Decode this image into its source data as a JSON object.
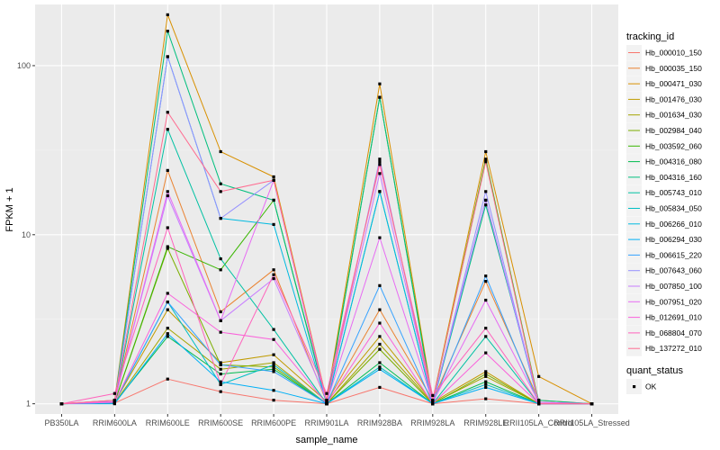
{
  "chart_data": {
    "type": "line",
    "title": "",
    "xlabel": "sample_name",
    "ylabel": "FPKM + 1",
    "y_scale": "log10",
    "ylim": [
      0.87,
      230
    ],
    "grid": true,
    "legend_position": "right",
    "categories": [
      "PB350LA",
      "RRIM600LA",
      "RRIM600LE",
      "RRIM600SE",
      "RRIM600PE",
      "RRIM901LA",
      "RRIM928BA",
      "RRIM928LA",
      "RRIM928LE",
      "RRII105LA_Control",
      "RRII105LA_Stressed"
    ],
    "y_ticks": [
      1,
      10,
      100
    ],
    "y_tick_labels": [
      "1",
      "10",
      "100"
    ],
    "color_legend": {
      "title": "tracking_id",
      "entries": [
        {
          "label": "Hb_000010_150",
          "color": "#F8766D"
        },
        {
          "label": "Hb_000035_150",
          "color": "#EA8331"
        },
        {
          "label": "Hb_000471_030",
          "color": "#D89000"
        },
        {
          "label": "Hb_001476_030",
          "color": "#C09B00"
        },
        {
          "label": "Hb_001634_030",
          "color": "#A3A500"
        },
        {
          "label": "Hb_002984_040",
          "color": "#7CAE00"
        },
        {
          "label": "Hb_003592_060",
          "color": "#39B600"
        },
        {
          "label": "Hb_004316_080",
          "color": "#00BB4E"
        },
        {
          "label": "Hb_004316_160",
          "color": "#00BF7D"
        },
        {
          "label": "Hb_005743_010",
          "color": "#00C1A3"
        },
        {
          "label": "Hb_005834_050",
          "color": "#00BFC4"
        },
        {
          "label": "Hb_006266_010",
          "color": "#00BAE0"
        },
        {
          "label": "Hb_006294_030",
          "color": "#00B0F6"
        },
        {
          "label": "Hb_006615_220",
          "color": "#35A2FF"
        },
        {
          "label": "Hb_007643_060",
          "color": "#9590FF"
        },
        {
          "label": "Hb_007850_100",
          "color": "#C77CFF"
        },
        {
          "label": "Hb_007951_020",
          "color": "#E76BF3"
        },
        {
          "label": "Hb_012691_010",
          "color": "#FA62DB"
        },
        {
          "label": "Hb_068804_070",
          "color": "#FF62BC"
        },
        {
          "label": "Hb_137272_010",
          "color": "#FF6C91"
        }
      ]
    },
    "shape_legend": {
      "title": "quant_status",
      "entries": [
        {
          "label": "OK",
          "shape": "square"
        }
      ]
    },
    "series": [
      {
        "name": "Hb_000010_150",
        "color": "#F8766D",
        "values": [
          1.0,
          1.01,
          1.4,
          1.18,
          1.05,
          1.0,
          1.25,
          1.0,
          1.07,
          1.0,
          1.0
        ]
      },
      {
        "name": "Hb_000035_150",
        "color": "#EA8331",
        "values": [
          1.0,
          1.03,
          24.0,
          3.5,
          6.2,
          1.02,
          3.6,
          1.05,
          5.3,
          1.05,
          1.0
        ]
      },
      {
        "name": "Hb_000471_030",
        "color": "#D89000",
        "values": [
          1.0,
          1.05,
          200.0,
          31.0,
          22.0,
          1.05,
          78.0,
          1.05,
          31.0,
          1.45,
          1.0
        ]
      },
      {
        "name": "Hb_001476_030",
        "color": "#C09B00",
        "values": [
          1.0,
          1.02,
          3.6,
          1.75,
          1.95,
          1.03,
          2.5,
          1.02,
          1.55,
          1.0,
          1.0
        ]
      },
      {
        "name": "Hb_001634_030",
        "color": "#A3A500",
        "values": [
          1.0,
          1.01,
          2.8,
          1.6,
          1.75,
          1.0,
          2.25,
          1.01,
          1.45,
          1.0,
          1.0
        ]
      },
      {
        "name": "Hb_002984_040",
        "color": "#7CAE00",
        "values": [
          1.0,
          1.02,
          8.3,
          1.7,
          1.65,
          1.0,
          2.1,
          1.0,
          1.5,
          1.0,
          1.0
        ]
      },
      {
        "name": "Hb_003592_060",
        "color": "#39B600",
        "values": [
          1.0,
          1.02,
          8.5,
          6.2,
          16.0,
          1.02,
          65.0,
          1.03,
          28.0,
          1.02,
          1.0
        ]
      },
      {
        "name": "Hb_004316_080",
        "color": "#00BB4E",
        "values": [
          1.0,
          1.01,
          2.5,
          1.5,
          1.6,
          1.0,
          1.75,
          1.0,
          1.35,
          1.0,
          1.0
        ]
      },
      {
        "name": "Hb_004316_160",
        "color": "#00BF7D",
        "values": [
          1.0,
          1.03,
          160.0,
          20.0,
          16.0,
          1.0,
          65.0,
          1.0,
          15.0,
          1.05,
          1.0
        ]
      },
      {
        "name": "Hb_005743_010",
        "color": "#00C1A3",
        "values": [
          1.0,
          1.02,
          42.0,
          7.2,
          2.75,
          1.0,
          18.0,
          1.0,
          2.5,
          1.0,
          1.0
        ]
      },
      {
        "name": "Hb_005834_050",
        "color": "#00BFC4",
        "values": [
          1.0,
          1.02,
          4.0,
          1.3,
          1.7,
          1.0,
          1.65,
          1.0,
          1.3,
          1.0,
          1.0
        ]
      },
      {
        "name": "Hb_006266_010",
        "color": "#00BAE0",
        "values": [
          1.0,
          1.02,
          113.0,
          12.5,
          11.5,
          1.0,
          18.0,
          1.0,
          16.0,
          1.0,
          1.0
        ]
      },
      {
        "name": "Hb_006294_030",
        "color": "#00B0F6",
        "values": [
          1.0,
          1.0,
          2.6,
          1.35,
          1.2,
          1.0,
          1.6,
          1.0,
          1.25,
          1.0,
          1.0
        ]
      },
      {
        "name": "Hb_006615_220",
        "color": "#35A2FF",
        "values": [
          1.0,
          1.02,
          4.0,
          1.7,
          1.55,
          1.0,
          5.0,
          1.0,
          5.7,
          1.0,
          1.0
        ]
      },
      {
        "name": "Hb_007643_060",
        "color": "#9590FF",
        "values": [
          1.0,
          1.02,
          113.0,
          12.5,
          21.0,
          1.0,
          28.0,
          1.0,
          18.0,
          1.0,
          1.0
        ]
      },
      {
        "name": "Hb_007850_100",
        "color": "#C77CFF",
        "values": [
          1.0,
          1.05,
          17.0,
          3.1,
          5.5,
          1.05,
          23.0,
          1.03,
          16.0,
          1.02,
          1.0
        ]
      },
      {
        "name": "Hb_007951_020",
        "color": "#E76BF3",
        "values": [
          1.0,
          1.03,
          18.0,
          3.1,
          21.0,
          1.02,
          9.6,
          1.02,
          4.1,
          1.02,
          1.0
        ]
      },
      {
        "name": "Hb_012691_010",
        "color": "#FA62DB",
        "values": [
          1.0,
          1.02,
          4.5,
          2.65,
          2.4,
          1.0,
          3.0,
          1.0,
          2.0,
          1.0,
          1.0
        ]
      },
      {
        "name": "Hb_068804_070",
        "color": "#FF62BC",
        "values": [
          1.0,
          1.15,
          11.0,
          1.3,
          5.8,
          1.15,
          26.0,
          1.12,
          2.8,
          1.0,
          1.0
        ]
      },
      {
        "name": "Hb_137272_010",
        "color": "#FF6C91",
        "values": [
          1.0,
          1.05,
          53.0,
          18.0,
          21.0,
          1.05,
          27.0,
          1.05,
          27.0,
          1.0,
          1.0
        ]
      }
    ]
  }
}
